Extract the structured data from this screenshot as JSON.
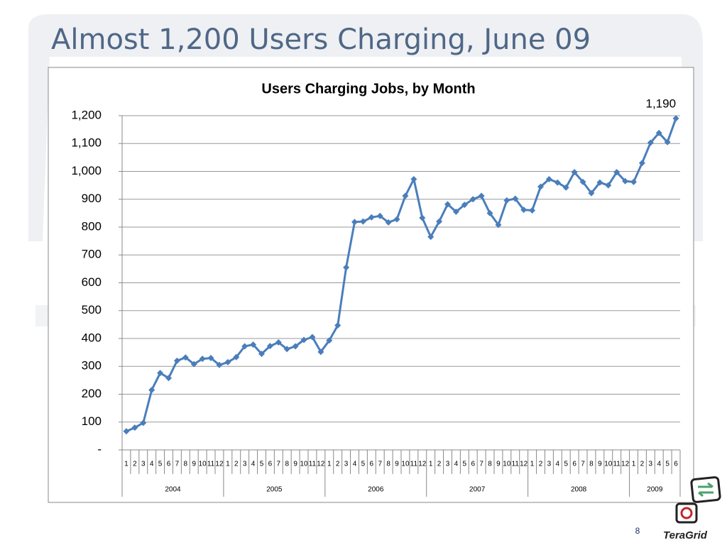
{
  "slide": {
    "title": "Almost 1,200 Users Charging, June 09",
    "page_number": "8",
    "logo": "TeraGrid"
  },
  "chart_data": {
    "type": "line",
    "title": "Users Charging Jobs, by Month",
    "categories": [
      "1",
      "2",
      "3",
      "4",
      "5",
      "6",
      "7",
      "8",
      "9",
      "10",
      "11",
      "12",
      "1",
      "2",
      "3",
      "4",
      "5",
      "6",
      "7",
      "8",
      "9",
      "10",
      "11",
      "12",
      "1",
      "2",
      "3",
      "4",
      "5",
      "6",
      "7",
      "8",
      "9",
      "10",
      "11",
      "12",
      "1",
      "2",
      "3",
      "4",
      "5",
      "6",
      "7",
      "8",
      "9",
      "10",
      "11",
      "12",
      "1",
      "2",
      "3",
      "4",
      "5",
      "6",
      "7",
      "8",
      "9",
      "10",
      "11",
      "12",
      "1",
      "2",
      "3",
      "4",
      "5",
      "6"
    ],
    "year_groups": [
      "2004",
      "2005",
      "2006",
      "2007",
      "2008",
      "2009"
    ],
    "values": [
      67,
      80,
      97,
      215,
      276,
      258,
      320,
      332,
      308,
      327,
      330,
      305,
      315,
      333,
      372,
      378,
      345,
      373,
      386,
      362,
      372,
      395,
      405,
      352,
      393,
      447,
      655,
      818,
      820,
      835,
      840,
      817,
      828,
      912,
      972,
      833,
      765,
      820,
      882,
      855,
      880,
      900,
      912,
      850,
      808,
      896,
      902,
      862,
      860,
      945,
      972,
      960,
      942,
      997,
      962,
      922,
      960,
      950,
      997,
      965,
      962,
      1030,
      1103,
      1138,
      1105,
      1190
    ],
    "value_labels": [
      null,
      null,
      null,
      null,
      null,
      null,
      null,
      null,
      null,
      null,
      null,
      null,
      null,
      null,
      null,
      null,
      null,
      null,
      null,
      null,
      null,
      null,
      null,
      null,
      null,
      null,
      null,
      null,
      null,
      null,
      null,
      null,
      null,
      null,
      null,
      null,
      null,
      null,
      null,
      null,
      null,
      null,
      null,
      null,
      null,
      null,
      null,
      null,
      null,
      null,
      null,
      null,
      null,
      null,
      null,
      null,
      null,
      null,
      null,
      null,
      null,
      null,
      null,
      null,
      null,
      "1,190"
    ],
    "color": "#4a7ebb",
    "ylim": [
      0,
      1200
    ],
    "yticks": [
      {
        "value": 0,
        "label": "-"
      },
      100,
      200,
      300,
      400,
      500,
      600,
      700,
      800,
      900,
      {
        "value": 1000,
        "label": "1,000"
      },
      {
        "value": 1100,
        "label": "1,100"
      },
      {
        "value": 1200,
        "label": "1,200"
      }
    ],
    "grid": true
  }
}
